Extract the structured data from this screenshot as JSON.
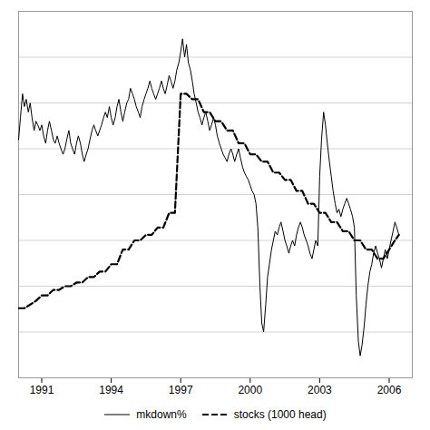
{
  "chart_data": {
    "type": "line",
    "xlim": [
      1990.0,
      2007.0
    ],
    "xticks": [
      1991,
      1994,
      1997,
      2000,
      2003,
      2006
    ],
    "ylim": [
      -1.0,
      1.0
    ],
    "yticks": [
      -1.0,
      -0.75,
      -0.5,
      -0.25,
      0.0,
      0.25,
      0.5,
      0.75,
      1.0
    ],
    "grid": true,
    "tick_labels": "x",
    "legend": "bottom",
    "series": [
      {
        "name": "mkdown%",
        "color": "black",
        "line_style": "solid",
        "x": [
          1990.0,
          1990.08,
          1990.17,
          1990.25,
          1990.33,
          1990.42,
          1990.5,
          1990.58,
          1990.67,
          1990.75,
          1990.83,
          1990.92,
          1991.0,
          1991.08,
          1991.17,
          1991.25,
          1991.33,
          1991.42,
          1991.5,
          1991.58,
          1991.67,
          1991.75,
          1991.83,
          1991.92,
          1992.0,
          1992.08,
          1992.17,
          1992.25,
          1992.33,
          1992.42,
          1992.5,
          1992.58,
          1992.67,
          1992.75,
          1992.83,
          1992.92,
          1993.0,
          1993.08,
          1993.17,
          1993.25,
          1993.33,
          1993.42,
          1993.5,
          1993.58,
          1993.67,
          1993.75,
          1993.83,
          1993.92,
          1994.0,
          1994.08,
          1994.17,
          1994.25,
          1994.33,
          1994.42,
          1994.5,
          1994.58,
          1994.67,
          1994.75,
          1994.83,
          1994.92,
          1995.0,
          1995.08,
          1995.17,
          1995.25,
          1995.33,
          1995.42,
          1995.5,
          1995.58,
          1995.67,
          1995.75,
          1995.83,
          1995.92,
          1996.0,
          1996.08,
          1996.17,
          1996.25,
          1996.33,
          1996.42,
          1996.5,
          1996.58,
          1996.67,
          1996.75,
          1996.83,
          1996.92,
          1997.0,
          1997.08,
          1997.17,
          1997.25,
          1997.33,
          1997.42,
          1997.5,
          1997.58,
          1997.67,
          1997.75,
          1997.83,
          1997.92,
          1998.0,
          1998.08,
          1998.17,
          1998.25,
          1998.33,
          1998.42,
          1998.5,
          1998.58,
          1998.67,
          1998.75,
          1998.83,
          1998.92,
          1999.0,
          1999.08,
          1999.17,
          1999.25,
          1999.33,
          1999.42,
          1999.5,
          1999.58,
          1999.67,
          1999.75,
          1999.83,
          1999.92,
          2000.0,
          2000.08,
          2000.17,
          2000.25,
          2000.33,
          2000.42,
          2000.5,
          2000.58,
          2000.67,
          2000.75,
          2000.83,
          2000.92,
          2001.0,
          2001.08,
          2001.17,
          2001.25,
          2001.33,
          2001.42,
          2001.5,
          2001.58,
          2001.67,
          2001.75,
          2001.83,
          2001.92,
          2002.0,
          2002.08,
          2002.17,
          2002.25,
          2002.33,
          2002.42,
          2002.5,
          2002.58,
          2002.67,
          2002.75,
          2002.83,
          2002.92,
          2003.0,
          2003.08,
          2003.17,
          2003.25,
          2003.33,
          2003.42,
          2003.5,
          2003.58,
          2003.67,
          2003.75,
          2003.83,
          2003.92,
          2004.0,
          2004.08,
          2004.17,
          2004.25,
          2004.33,
          2004.42,
          2004.5,
          2004.58,
          2004.67,
          2004.75,
          2004.83,
          2004.92,
          2005.0,
          2005.08,
          2005.17,
          2005.25,
          2005.33,
          2005.42,
          2005.5,
          2005.58,
          2005.67,
          2005.75,
          2005.83,
          2005.92,
          2006.0,
          2006.08,
          2006.17,
          2006.25,
          2006.33,
          2006.42
        ],
        "values": [
          0.3,
          0.42,
          0.55,
          0.48,
          0.52,
          0.45,
          0.5,
          0.42,
          0.35,
          0.4,
          0.38,
          0.35,
          0.38,
          0.32,
          0.28,
          0.35,
          0.4,
          0.35,
          0.3,
          0.28,
          0.32,
          0.28,
          0.25,
          0.22,
          0.25,
          0.3,
          0.35,
          0.28,
          0.25,
          0.22,
          0.28,
          0.32,
          0.28,
          0.22,
          0.18,
          0.22,
          0.25,
          0.3,
          0.35,
          0.38,
          0.35,
          0.32,
          0.35,
          0.38,
          0.42,
          0.45,
          0.42,
          0.48,
          0.42,
          0.38,
          0.42,
          0.48,
          0.52,
          0.45,
          0.4,
          0.45,
          0.5,
          0.52,
          0.58,
          0.55,
          0.52,
          0.48,
          0.45,
          0.42,
          0.48,
          0.52,
          0.55,
          0.58,
          0.62,
          0.58,
          0.55,
          0.52,
          0.55,
          0.58,
          0.62,
          0.58,
          0.55,
          0.6,
          0.65,
          0.62,
          0.58,
          0.62,
          0.68,
          0.72,
          0.78,
          0.85,
          0.75,
          0.82,
          0.72,
          0.68,
          0.62,
          0.55,
          0.5,
          0.45,
          0.42,
          0.38,
          0.42,
          0.45,
          0.4,
          0.35,
          0.38,
          0.42,
          0.38,
          0.32,
          0.28,
          0.25,
          0.22,
          0.2,
          0.18,
          0.22,
          0.25,
          0.22,
          0.18,
          0.22,
          0.25,
          0.2,
          0.15,
          0.12,
          0.1,
          0.08,
          0.05,
          0.02,
          0.0,
          -0.05,
          -0.18,
          -0.5,
          -0.7,
          -0.75,
          -0.6,
          -0.45,
          -0.38,
          -0.3,
          -0.25,
          -0.2,
          -0.22,
          -0.18,
          -0.15,
          -0.2,
          -0.25,
          -0.28,
          -0.32,
          -0.28,
          -0.25,
          -0.28,
          -0.22,
          -0.18,
          -0.15,
          -0.18,
          -0.22,
          -0.25,
          -0.28,
          -0.32,
          -0.35,
          -0.3,
          -0.25,
          -0.28,
          0.1,
          0.3,
          0.45,
          0.38,
          0.28,
          0.18,
          0.1,
          0.02,
          -0.05,
          -0.1,
          -0.08,
          -0.12,
          -0.08,
          -0.05,
          -0.02,
          -0.05,
          -0.08,
          -0.12,
          -0.18,
          -0.55,
          -0.8,
          -0.88,
          -0.82,
          -0.72,
          -0.6,
          -0.5,
          -0.42,
          -0.38,
          -0.32,
          -0.28,
          -0.32,
          -0.35,
          -0.4,
          -0.35,
          -0.3,
          -0.35,
          -0.3,
          -0.25,
          -0.2,
          -0.15,
          -0.18,
          -0.22
        ]
      },
      {
        "name": "stocks (1000 head)",
        "color": "black",
        "line_style": "dashed",
        "x": [
          1990.0,
          1990.25,
          1990.5,
          1990.75,
          1991.0,
          1991.25,
          1991.5,
          1991.75,
          1992.0,
          1992.25,
          1992.5,
          1992.75,
          1993.0,
          1993.25,
          1993.5,
          1993.75,
          1994.0,
          1994.25,
          1994.5,
          1994.75,
          1995.0,
          1995.25,
          1995.5,
          1995.75,
          1996.0,
          1996.25,
          1996.5,
          1996.75,
          1997.0,
          1997.25,
          1997.5,
          1997.75,
          1998.0,
          1998.25,
          1998.5,
          1998.75,
          1999.0,
          1999.25,
          1999.5,
          1999.75,
          2000.0,
          2000.25,
          2000.5,
          2000.75,
          2001.0,
          2001.25,
          2001.5,
          2001.75,
          2002.0,
          2002.25,
          2002.5,
          2002.75,
          2003.0,
          2003.25,
          2003.5,
          2003.75,
          2004.0,
          2004.25,
          2004.5,
          2004.75,
          2005.0,
          2005.25,
          2005.5,
          2005.75,
          2006.0,
          2006.25,
          2006.42
        ],
        "values": [
          -0.62,
          -0.62,
          -0.6,
          -0.58,
          -0.55,
          -0.55,
          -0.52,
          -0.52,
          -0.5,
          -0.5,
          -0.48,
          -0.48,
          -0.45,
          -0.45,
          -0.42,
          -0.42,
          -0.38,
          -0.38,
          -0.3,
          -0.3,
          -0.25,
          -0.25,
          -0.22,
          -0.22,
          -0.18,
          -0.18,
          -0.1,
          -0.1,
          0.55,
          0.55,
          0.52,
          0.52,
          0.45,
          0.45,
          0.4,
          0.4,
          0.35,
          0.35,
          0.28,
          0.28,
          0.22,
          0.22,
          0.18,
          0.18,
          0.12,
          0.12,
          0.08,
          0.08,
          0.02,
          0.02,
          -0.05,
          -0.05,
          -0.1,
          -0.1,
          -0.15,
          -0.15,
          -0.2,
          -0.2,
          -0.25,
          -0.25,
          -0.3,
          -0.3,
          -0.35,
          -0.35,
          -0.3,
          -0.25,
          -0.22
        ]
      }
    ]
  }
}
